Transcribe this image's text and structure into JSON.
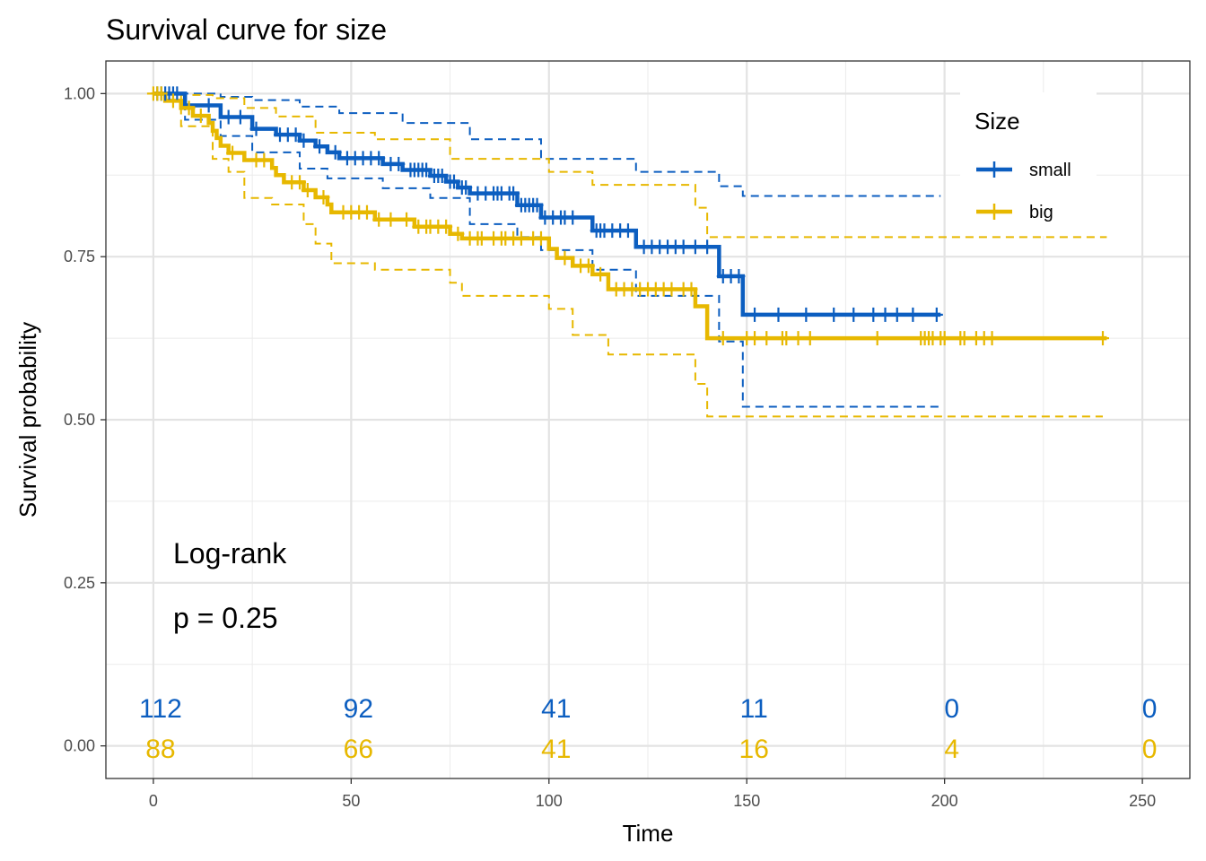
{
  "chart_data": {
    "type": "line",
    "title": "Survival curve for size",
    "xlabel": "Time",
    "ylabel": "Survival probability",
    "xlim": [
      -12,
      262
    ],
    "ylim": [
      -0.05,
      1.05
    ],
    "x_ticks": [
      0,
      50,
      100,
      150,
      200,
      250
    ],
    "x_tick_labels": [
      "0",
      "50",
      "100",
      "150",
      "200",
      "250"
    ],
    "y_ticks": [
      0,
      0.25,
      0.5,
      0.75,
      1.0
    ],
    "y_tick_labels": [
      "0.00",
      "0.25",
      "0.50",
      "0.75",
      "1.00"
    ],
    "grid": true,
    "legend": {
      "title": "Size",
      "position": "top-right",
      "entries": [
        "small",
        "big"
      ]
    },
    "annotations": {
      "test_name": "Log-rank",
      "p_value": "p = 0.25"
    },
    "series": [
      {
        "name": "small",
        "color": "#0C5EC0",
        "steps": [
          [
            0,
            1.0
          ],
          [
            8,
            0.982
          ],
          [
            17,
            0.964
          ],
          [
            25,
            0.946
          ],
          [
            31,
            0.937
          ],
          [
            37,
            0.928
          ],
          [
            41,
            0.919
          ],
          [
            44,
            0.91
          ],
          [
            47,
            0.901
          ],
          [
            58,
            0.892
          ],
          [
            63,
            0.883
          ],
          [
            70,
            0.874
          ],
          [
            74,
            0.865
          ],
          [
            77,
            0.856
          ],
          [
            80,
            0.847
          ],
          [
            92,
            0.829
          ],
          [
            98,
            0.81
          ],
          [
            111,
            0.79
          ],
          [
            122,
            0.765
          ],
          [
            143,
            0.72
          ],
          [
            149,
            0.661
          ],
          [
            199,
            0.661
          ]
        ],
        "lower_ci": [
          [
            0,
            1.0
          ],
          [
            8,
            0.96
          ],
          [
            17,
            0.935
          ],
          [
            25,
            0.91
          ],
          [
            37,
            0.885
          ],
          [
            44,
            0.87
          ],
          [
            58,
            0.855
          ],
          [
            70,
            0.84
          ],
          [
            80,
            0.8
          ],
          [
            92,
            0.78
          ],
          [
            98,
            0.76
          ],
          [
            111,
            0.73
          ],
          [
            122,
            0.69
          ],
          [
            143,
            0.62
          ],
          [
            149,
            0.52
          ],
          [
            199,
            0.52
          ]
        ],
        "upper_ci": [
          [
            0,
            1.0
          ],
          [
            17,
            0.995
          ],
          [
            25,
            0.99
          ],
          [
            37,
            0.98
          ],
          [
            47,
            0.97
          ],
          [
            63,
            0.955
          ],
          [
            80,
            0.93
          ],
          [
            98,
            0.9
          ],
          [
            122,
            0.88
          ],
          [
            143,
            0.858
          ],
          [
            149,
            0.843
          ],
          [
            199,
            0.843
          ]
        ],
        "censor_times": [
          1,
          2,
          3,
          4,
          5,
          6,
          14,
          19,
          22,
          26,
          32,
          34,
          36,
          38,
          42,
          46,
          49,
          51,
          53,
          55,
          57,
          60,
          62,
          65,
          66,
          67,
          68,
          69,
          71,
          72,
          73,
          75,
          76,
          78,
          79,
          82,
          84,
          86,
          87,
          88,
          90,
          91,
          93,
          94,
          95,
          96,
          97,
          99,
          101,
          103,
          104,
          106,
          112,
          113,
          114,
          116,
          118,
          120,
          124,
          126,
          128,
          130,
          132,
          134,
          137,
          140,
          144,
          146,
          148,
          152,
          158,
          165,
          172,
          177,
          182,
          185,
          188,
          192,
          198
        ]
      },
      {
        "name": "big",
        "color": "#E7B800",
        "steps": [
          [
            0,
            1.0
          ],
          [
            3,
            0.989
          ],
          [
            7,
            0.978
          ],
          [
            10,
            0.966
          ],
          [
            14,
            0.955
          ],
          [
            15,
            0.943
          ],
          [
            16,
            0.932
          ],
          [
            17,
            0.92
          ],
          [
            19,
            0.909
          ],
          [
            23,
            0.898
          ],
          [
            30,
            0.886
          ],
          [
            31,
            0.875
          ],
          [
            33,
            0.864
          ],
          [
            38,
            0.852
          ],
          [
            41,
            0.841
          ],
          [
            44,
            0.83
          ],
          [
            45,
            0.818
          ],
          [
            56,
            0.807
          ],
          [
            66,
            0.796
          ],
          [
            75,
            0.785
          ],
          [
            78,
            0.778
          ],
          [
            100,
            0.762
          ],
          [
            102,
            0.748
          ],
          [
            106,
            0.736
          ],
          [
            111,
            0.723
          ],
          [
            115,
            0.7
          ],
          [
            137,
            0.674
          ],
          [
            140,
            0.625
          ],
          [
            241,
            0.625
          ]
        ],
        "lower_ci": [
          [
            0,
            1.0
          ],
          [
            7,
            0.95
          ],
          [
            15,
            0.9
          ],
          [
            19,
            0.88
          ],
          [
            23,
            0.84
          ],
          [
            30,
            0.83
          ],
          [
            38,
            0.8
          ],
          [
            41,
            0.77
          ],
          [
            45,
            0.74
          ],
          [
            56,
            0.73
          ],
          [
            75,
            0.71
          ],
          [
            78,
            0.69
          ],
          [
            100,
            0.67
          ],
          [
            106,
            0.63
          ],
          [
            115,
            0.6
          ],
          [
            137,
            0.555
          ],
          [
            140,
            0.505
          ],
          [
            240,
            0.505
          ]
        ],
        "upper_ci": [
          [
            0,
            1.0
          ],
          [
            7,
            0.998
          ],
          [
            15,
            0.993
          ],
          [
            23,
            0.978
          ],
          [
            31,
            0.965
          ],
          [
            41,
            0.94
          ],
          [
            56,
            0.93
          ],
          [
            75,
            0.9
          ],
          [
            100,
            0.88
          ],
          [
            111,
            0.86
          ],
          [
            137,
            0.825
          ],
          [
            140,
            0.78
          ],
          [
            241,
            0.78
          ]
        ],
        "censor_times": [
          0,
          1,
          2,
          5,
          9,
          12,
          20,
          26,
          28,
          35,
          37,
          39,
          43,
          48,
          50,
          52,
          54,
          57,
          60,
          64,
          67,
          69,
          70,
          72,
          74,
          77,
          80,
          82,
          83,
          86,
          88,
          89,
          91,
          93,
          96,
          98,
          104,
          108,
          110,
          113,
          117,
          119,
          121,
          123,
          125,
          127,
          129,
          131,
          134,
          136,
          144,
          150,
          152,
          155,
          159,
          160,
          163,
          166,
          183,
          194,
          195,
          196,
          197,
          199,
          200,
          204,
          205,
          208,
          210,
          212,
          240
        ]
      }
    ],
    "risk_table": {
      "times": [
        0,
        50,
        100,
        150,
        200,
        250
      ],
      "rows": [
        {
          "name": "small",
          "values": [
            "112",
            "92",
            "41",
            "11",
            "0",
            "0"
          ]
        },
        {
          "name": "big",
          "values": [
            "88",
            "66",
            "41",
            "16",
            "4",
            "0"
          ]
        }
      ]
    }
  }
}
